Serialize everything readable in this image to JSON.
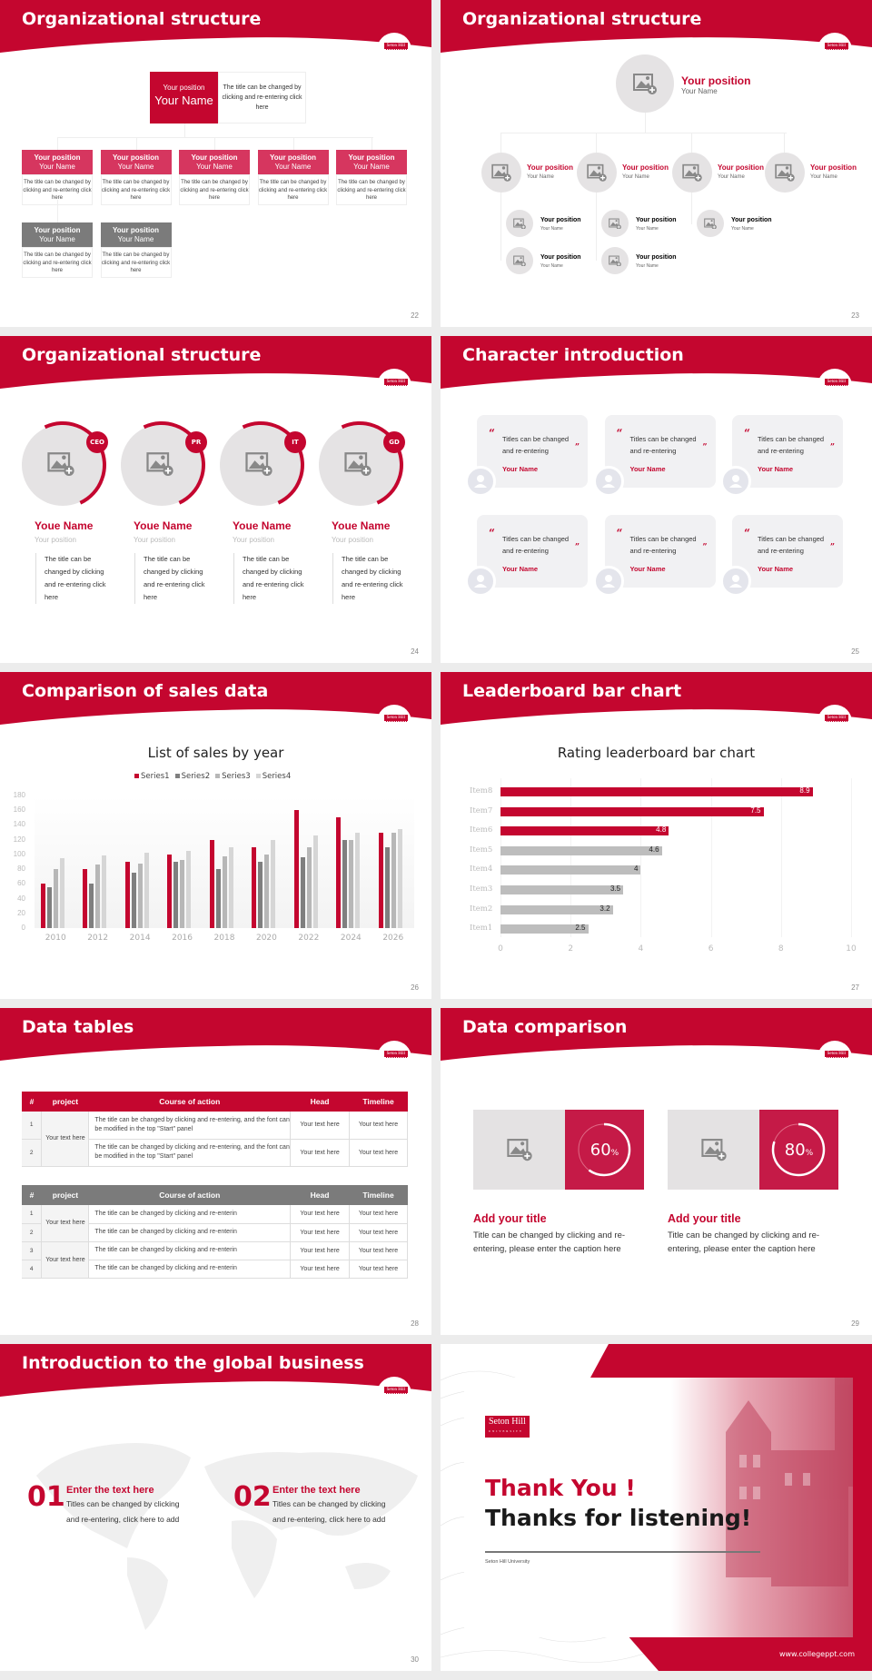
{
  "brand": {
    "logo_text": "Seton Hill",
    "accent": "#c4062f",
    "grey": "#7b7b7b"
  },
  "slides": [
    {
      "number": "22",
      "title": "Organizational structure",
      "top": {
        "position": "Your position",
        "name": "Your Name",
        "desc": "The title can be changed by clicking and re-entering click here"
      },
      "nodes": [
        {
          "position": "Your position",
          "name": "Your Name",
          "desc": "The title can be changed by clicking and re-entering click here",
          "color": "#d6365f"
        },
        {
          "position": "Your position",
          "name": "Your Name",
          "desc": "The title can be changed by clicking and re-entering click here",
          "color": "#d6365f"
        },
        {
          "position": "Your position",
          "name": "Your Name",
          "desc": "The title can be changed by clicking and re-entering click here",
          "color": "#d6365f"
        },
        {
          "position": "Your position",
          "name": "Your Name",
          "desc": "The title can be changed by clicking and re-entering click here",
          "color": "#d6365f"
        },
        {
          "position": "Your position",
          "name": "Your Name",
          "desc": "The title can be changed by clicking and re-entering click here",
          "color": "#d6365f"
        },
        {
          "position": "Your position",
          "name": "Your Name",
          "desc": "The title can be changed by clicking and re-entering click here",
          "color": "#7b7b7b"
        },
        {
          "position": "Your position",
          "name": "Your Name",
          "desc": "The title can be changed by clicking and re-entering click here",
          "color": "#7b7b7b"
        }
      ]
    },
    {
      "number": "23",
      "title": "Organizational structure",
      "top": {
        "position": "Your position",
        "name": "Your Name"
      },
      "level2": [
        {
          "position": "Your position",
          "name": "Your Name"
        },
        {
          "position": "Your position",
          "name": "Your Name"
        },
        {
          "position": "Your position",
          "name": "Your Name"
        },
        {
          "position": "Your position",
          "name": "Your Name"
        }
      ],
      "level3": [
        {
          "position": "Your position",
          "name": "Your Name"
        },
        {
          "position": "Your position",
          "name": "Your Name"
        },
        {
          "position": "Your position",
          "name": "Your Name"
        },
        {
          "position": "Your position",
          "name": "Your Name"
        },
        {
          "position": "Your position",
          "name": "Your Name"
        }
      ]
    },
    {
      "number": "24",
      "title": "Organizational structure",
      "people": [
        {
          "badge": "CEO",
          "name": "Youe Name",
          "position": "Your position",
          "desc": "The title can be changed by clicking and re-entering click here"
        },
        {
          "badge": "PR",
          "name": "Youe Name",
          "position": "Your position",
          "desc": "The title can be changed by clicking and re-entering click here"
        },
        {
          "badge": "IT",
          "name": "Youe Name",
          "position": "Your position",
          "desc": "The title can be changed by clicking and re-entering click here"
        },
        {
          "badge": "GD",
          "name": "Youe Name",
          "position": "Your position",
          "desc": "The title can be changed by clicking and re-entering click here"
        }
      ]
    },
    {
      "number": "25",
      "title": "Character introduction",
      "cards": [
        {
          "line1": "Titles can be changed",
          "line2": "and re-entering",
          "name": "Your Name"
        },
        {
          "line1": "Titles can be changed",
          "line2": "and re-entering",
          "name": "Your Name"
        },
        {
          "line1": "Titles can be changed",
          "line2": "and re-entering",
          "name": "Your Name"
        },
        {
          "line1": "Titles can be changed",
          "line2": "and re-entering",
          "name": "Your Name"
        },
        {
          "line1": "Titles can be changed",
          "line2": "and re-entering",
          "name": "Your Name"
        },
        {
          "line1": "Titles can be changed",
          "line2": "and re-entering",
          "name": "Your Name"
        }
      ],
      "open_quote": "“",
      "close_quote": "”"
    },
    {
      "number": "26",
      "title": "Comparison of sales data"
    },
    {
      "number": "27",
      "title": "Leaderboard bar chart"
    },
    {
      "number": "28",
      "title": "Data tables",
      "headers": [
        "#",
        "project",
        "Course of action",
        "Head",
        "Timeline"
      ],
      "table1": [
        {
          "n": "1",
          "action": " The title can be changed by clicking and re-entering, and the font can be modified in the top \"Start\" panel",
          "head": "Your text here",
          "timeline": "Your text here"
        },
        {
          "n": "2",
          "action": "The title can be changed by clicking and re-entering, and the font can be modified in the top \"Start\" panel",
          "head": "Your text here",
          "timeline": "Your text here"
        }
      ],
      "table1_project": "Your text here",
      "table2": [
        {
          "n": "1",
          "action": "The title can be changed by clicking and re-enterin",
          "head": "Your text here",
          "timeline": "Your text here"
        },
        {
          "n": "2",
          "action": "The title can be changed by clicking and re-enterin",
          "head": "Your text here",
          "timeline": "Your text here"
        },
        {
          "n": "3",
          "action": "The title can be changed by clicking and re-enterin",
          "head": "Your text here",
          "timeline": "Your text here"
        },
        {
          "n": "4",
          "action": "The title can be changed by clicking and re-enterin",
          "head": "Your text here",
          "timeline": "Your text here"
        }
      ],
      "table2_projects": [
        "Your text here",
        "Your text here"
      ]
    },
    {
      "number": "29",
      "title": "Data comparison",
      "items": [
        {
          "percent": "60",
          "unit": "%",
          "title": "Add your title",
          "desc": "Title can be changed by clicking and re-entering, please enter the caption here"
        },
        {
          "percent": "80",
          "unit": "%",
          "title": "Add your title",
          "desc": "Title can be changed by clicking and re-entering, please enter the caption here"
        }
      ]
    },
    {
      "number": "30",
      "title": "Introduction to the global business",
      "items": [
        {
          "num": "01",
          "title": "Enter the text here",
          "line1": "Titles can be changed by clicking",
          "line2": "and re-entering, click here to add"
        },
        {
          "num": "02",
          "title": "Enter the text here",
          "line1": "Titles can be changed by clicking",
          "line2": "and re-entering, click here to add"
        }
      ]
    },
    {
      "thanks": "Thank You !",
      "subtitle": "Thanks for listening!",
      "org": "Seton Hill University",
      "logo_main": "Seton Hill",
      "logo_sub": "UNIVERSITY",
      "url": "www.collegeppt.com"
    }
  ],
  "chart_data": [
    {
      "type": "bar",
      "title": "List of sales by year",
      "categories": [
        "2010",
        "2012",
        "2014",
        "2016",
        "2018",
        "2020",
        "2022",
        "2024",
        "2026"
      ],
      "series": [
        {
          "name": "Series1",
          "color": "#c4062f",
          "values": [
            60,
            80,
            90,
            100,
            120,
            110,
            160,
            150,
            130
          ]
        },
        {
          "name": "Series2",
          "color": "#7f7f7f",
          "values": [
            55,
            60,
            75,
            90,
            80,
            90,
            96,
            120,
            110
          ]
        },
        {
          "name": "Series3",
          "color": "#b7b7b7",
          "values": [
            80,
            86,
            88,
            92,
            98,
            100,
            110,
            120,
            130
          ]
        },
        {
          "name": "Series4",
          "color": "#d6d6d6",
          "values": [
            95,
            99,
            102,
            105,
            110,
            120,
            126,
            130,
            135
          ]
        }
      ],
      "yticks": [
        "0",
        "20",
        "40",
        "60",
        "80",
        "100",
        "120",
        "140",
        "160",
        "180"
      ],
      "ylim": [
        0,
        180
      ],
      "grid": false,
      "legend_position": "top"
    },
    {
      "type": "bar",
      "orientation": "horizontal",
      "title": "Rating leaderboard bar chart",
      "categories": [
        "Item8",
        "Item7",
        "Item6",
        "Item5",
        "Item4",
        "Item3",
        "Item2",
        "Item1"
      ],
      "values": [
        8.9,
        7.5,
        4.8,
        4.6,
        4,
        3.5,
        3.2,
        2.5
      ],
      "labels": [
        "8.9",
        "7.5",
        "4.8",
        "4.6",
        "4",
        "3.5",
        "3.2",
        "2.5"
      ],
      "colors": [
        "#c4062f",
        "#c4062f",
        "#c4062f",
        "#bdbdbd",
        "#bdbdbd",
        "#bdbdbd",
        "#bdbdbd",
        "#bdbdbd"
      ],
      "xticks": [
        "0",
        "2",
        "4",
        "6",
        "8",
        "10"
      ],
      "xlim": [
        0,
        10
      ],
      "grid": true
    }
  ]
}
